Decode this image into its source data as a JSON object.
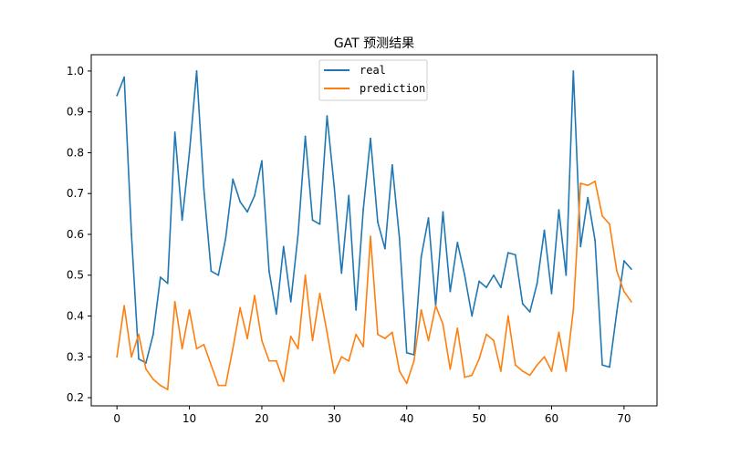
{
  "chart_data": {
    "type": "line",
    "title": "GAT 预测结果",
    "xlabel": "",
    "ylabel": "",
    "xlim": [
      -3.55,
      74.55
    ],
    "ylim": [
      0.18,
      1.04
    ],
    "xticks": [
      0,
      10,
      20,
      30,
      40,
      50,
      60,
      70
    ],
    "xtick_labels": [
      "0",
      "10",
      "20",
      "30",
      "40",
      "50",
      "60",
      "70"
    ],
    "yticks": [
      0.2,
      0.3,
      0.4,
      0.5,
      0.6,
      0.7,
      0.8,
      0.9,
      1.0
    ],
    "ytick_labels": [
      "0.2",
      "0.3",
      "0.4",
      "0.5",
      "0.6",
      "0.7",
      "0.8",
      "0.9",
      "1.0"
    ],
    "grid": false,
    "legend_position": "top-center",
    "x": [
      0,
      1,
      2,
      3,
      4,
      5,
      6,
      7,
      8,
      9,
      10,
      11,
      12,
      13,
      14,
      15,
      16,
      17,
      18,
      19,
      20,
      21,
      22,
      23,
      24,
      25,
      26,
      27,
      28,
      29,
      30,
      31,
      32,
      33,
      34,
      35,
      36,
      37,
      38,
      39,
      40,
      41,
      42,
      43,
      44,
      45,
      46,
      47,
      48,
      49,
      50,
      51,
      52,
      53,
      54,
      55,
      56,
      57,
      58,
      59,
      60,
      61,
      62,
      63,
      64,
      65,
      66,
      67,
      68,
      69,
      70,
      71
    ],
    "series": [
      {
        "name": "real",
        "color": "#1f77b4",
        "values": [
          0.94,
          0.985,
          0.6,
          0.295,
          0.285,
          0.355,
          0.495,
          0.48,
          0.85,
          0.635,
          0.8,
          1.0,
          0.71,
          0.51,
          0.5,
          0.59,
          0.735,
          0.68,
          0.655,
          0.695,
          0.78,
          0.51,
          0.405,
          0.57,
          0.435,
          0.6,
          0.84,
          0.635,
          0.625,
          0.89,
          0.715,
          0.505,
          0.695,
          0.415,
          0.66,
          0.835,
          0.63,
          0.565,
          0.77,
          0.59,
          0.31,
          0.305,
          0.545,
          0.64,
          0.425,
          0.655,
          0.46,
          0.58,
          0.5,
          0.4,
          0.485,
          0.47,
          0.5,
          0.47,
          0.555,
          0.55,
          0.43,
          0.41,
          0.48,
          0.61,
          0.455,
          0.66,
          0.5,
          1.0,
          0.57,
          0.69,
          0.585,
          0.28,
          0.275,
          0.41,
          0.535,
          0.515
        ]
      },
      {
        "name": "prediction",
        "color": "#ff7f0e",
        "values": [
          0.3,
          0.425,
          0.3,
          0.355,
          0.27,
          0.245,
          0.23,
          0.22,
          0.435,
          0.32,
          0.415,
          0.32,
          0.33,
          0.28,
          0.23,
          0.23,
          0.32,
          0.42,
          0.345,
          0.45,
          0.34,
          0.29,
          0.29,
          0.24,
          0.35,
          0.32,
          0.5,
          0.34,
          0.455,
          0.36,
          0.26,
          0.3,
          0.29,
          0.355,
          0.325,
          0.595,
          0.355,
          0.345,
          0.36,
          0.265,
          0.235,
          0.29,
          0.415,
          0.34,
          0.425,
          0.38,
          0.27,
          0.37,
          0.25,
          0.255,
          0.295,
          0.355,
          0.34,
          0.265,
          0.4,
          0.28,
          0.265,
          0.255,
          0.28,
          0.3,
          0.265,
          0.36,
          0.265,
          0.415,
          0.725,
          0.72,
          0.73,
          0.645,
          0.625,
          0.51,
          0.46,
          0.435
        ]
      }
    ]
  }
}
